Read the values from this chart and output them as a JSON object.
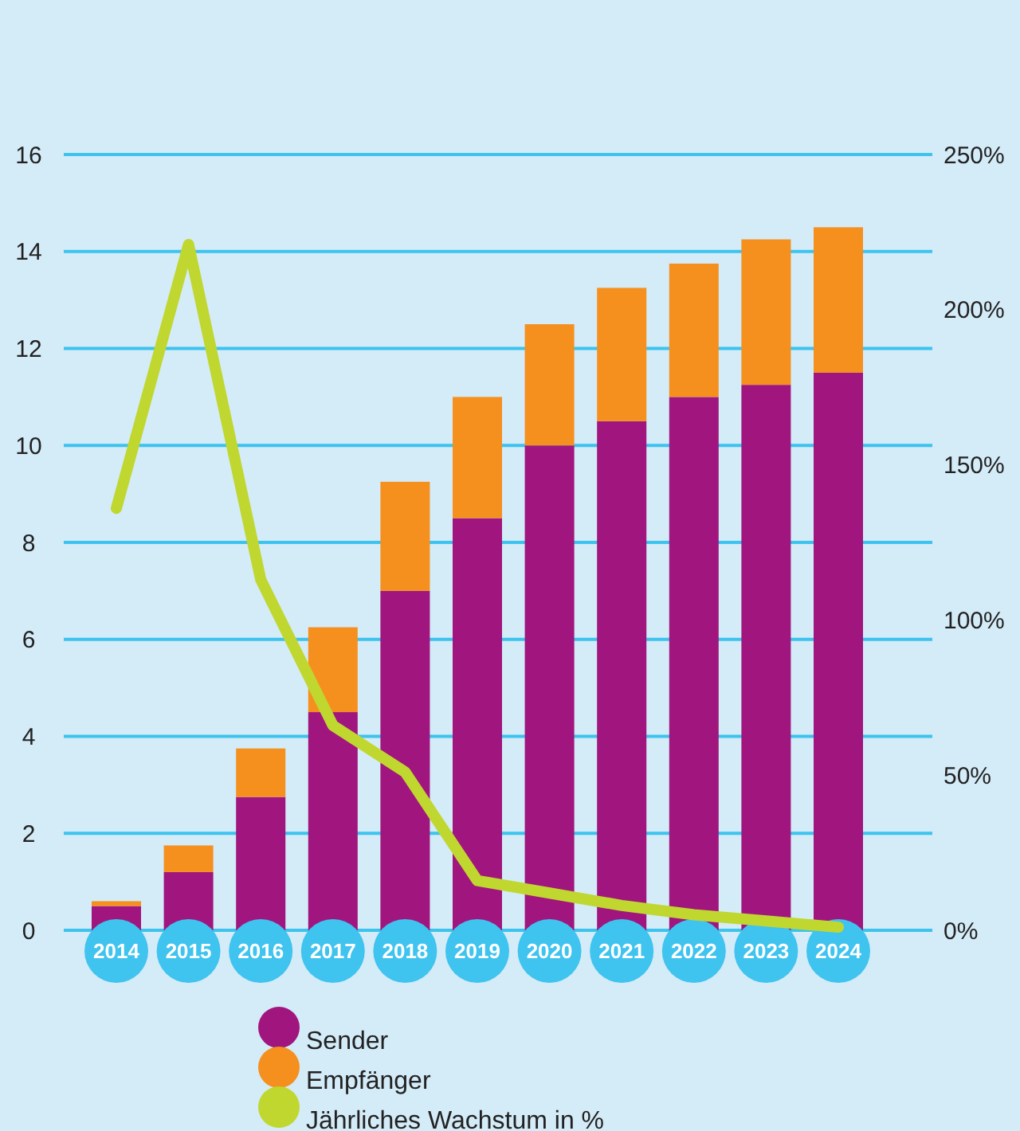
{
  "chart_data": {
    "type": "bar",
    "stacked": true,
    "categories": [
      "2014",
      "2015",
      "2016",
      "2017",
      "2018",
      "2019",
      "2020",
      "2021",
      "2022",
      "2023",
      "2024"
    ],
    "series": [
      {
        "name": "Sender",
        "color": "#a0167e",
        "values": [
          0.5,
          1.2,
          2.75,
          4.5,
          7.0,
          8.5,
          10.0,
          10.5,
          11.0,
          11.25,
          11.5
        ]
      },
      {
        "name": "Empfänger",
        "color": "#f5901e",
        "values": [
          0.1,
          0.55,
          1.0,
          1.75,
          2.25,
          2.5,
          2.5,
          2.75,
          2.75,
          3.0,
          3.0
        ]
      },
      {
        "name": "Jährliches Wachstum in %",
        "type": "line",
        "axis": "y2",
        "color": "#c0d72f",
        "values": [
          136,
          221,
          113,
          66,
          51,
          16,
          12,
          8,
          5,
          3,
          1
        ]
      }
    ],
    "ylim": [
      0,
      16
    ],
    "yticks": [
      0,
      2,
      4,
      6,
      8,
      10,
      12,
      14,
      16
    ],
    "y2lim": [
      0,
      250
    ],
    "y2ticks": [
      {
        "value": 0,
        "label": "0%"
      },
      {
        "value": 50,
        "label": "50%"
      },
      {
        "value": 100,
        "label": "100%"
      },
      {
        "value": 150,
        "label": "150%"
      },
      {
        "value": 200,
        "label": "200%"
      },
      {
        "value": 250,
        "label": "250%"
      }
    ],
    "grid": "y",
    "legend": "bottom",
    "marker": "none",
    "line_style": "solid"
  }
}
